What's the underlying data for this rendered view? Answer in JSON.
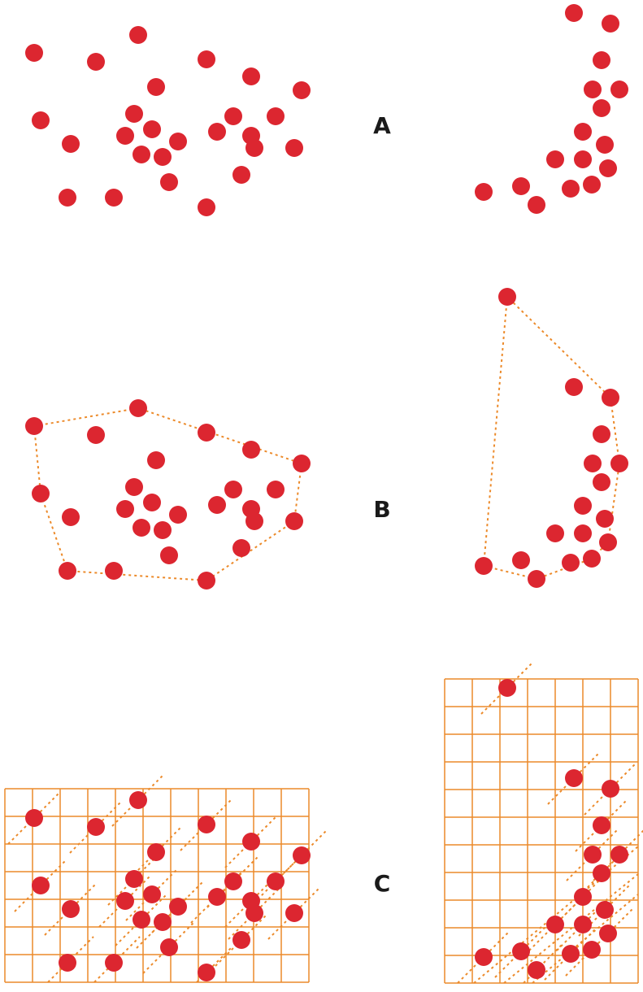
{
  "colors": {
    "point": "#dc2630",
    "hull": "#ec8a2a",
    "grid": "#ec8a2a",
    "label": "#1a1a1a"
  },
  "labels": {
    "a": "A",
    "b": "B",
    "c": "C"
  }
}
